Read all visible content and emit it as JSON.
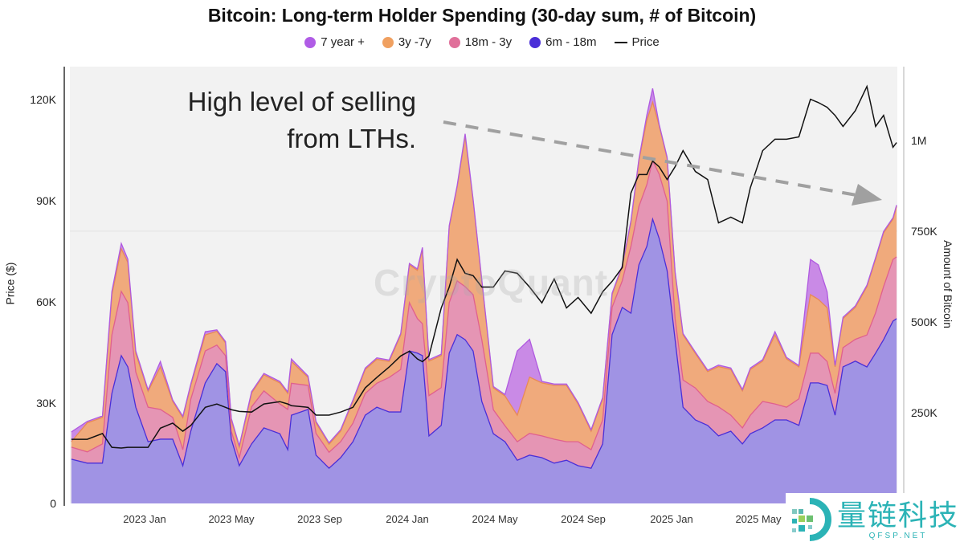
{
  "chart_data": {
    "type": "area",
    "stacked": true,
    "title": "Bitcoin: Long-term Holder Spending (30-day sum, # of Bitcoin)",
    "legend": {
      "placement": "top",
      "items": [
        "7 year +",
        "3y -7y",
        "18m - 3y",
        "6m - 18m",
        "Price"
      ]
    },
    "xlabel": "",
    "ylabel_left": "Price ($)",
    "ylabel_right": "Amount of Bitcoin",
    "x_ticks": [
      "2023 Jan",
      "2023 May",
      "2023 Sep",
      "2024 Jan",
      "2024 May",
      "2024 Sep",
      "2025 Jan",
      "2025 May"
    ],
    "x_tick_dates": [
      "2023-01-01",
      "2023-05-01",
      "2023-09-01",
      "2024-01-01",
      "2024-05-01",
      "2024-09-01",
      "2025-01-01",
      "2025-05-01"
    ],
    "xlim": [
      "2022-09-20",
      "2025-11-06"
    ],
    "left_ticks": [
      "0",
      "30K",
      "60K",
      "90K",
      "120K"
    ],
    "left_tick_values": [
      0,
      30000,
      60000,
      90000,
      120000
    ],
    "ylim_left": [
      0,
      130000
    ],
    "right_ticks": [
      "250K",
      "500K",
      "750K",
      "1M"
    ],
    "right_tick_values": [
      250000,
      500000,
      750000,
      1000000
    ],
    "ylim_right": [
      0,
      1203000
    ],
    "grid": "single horizontal line at 750K",
    "x": [
      "2022-09-22",
      "2022-10-14",
      "2022-11-04",
      "2022-11-17",
      "2022-11-30",
      "2022-12-09",
      "2022-12-20",
      "2023-01-06",
      "2023-01-23",
      "2023-02-09",
      "2023-02-23",
      "2023-03-06",
      "2023-03-26",
      "2023-04-11",
      "2023-04-23",
      "2023-05-01",
      "2023-05-12",
      "2023-05-29",
      "2023-06-15",
      "2023-07-07",
      "2023-07-18",
      "2023-07-23",
      "2023-08-15",
      "2023-08-26",
      "2023-09-13",
      "2023-09-29",
      "2023-10-16",
      "2023-11-02",
      "2023-11-18",
      "2023-12-05",
      "2023-12-21",
      "2024-01-02",
      "2024-01-13",
      "2024-01-20",
      "2024-01-29",
      "2024-02-15",
      "2024-02-26",
      "2024-03-08",
      "2024-03-19",
      "2024-03-30",
      "2024-04-11",
      "2024-04-27",
      "2024-05-13",
      "2024-05-30",
      "2024-06-16",
      "2024-07-03",
      "2024-07-20",
      "2024-08-06",
      "2024-08-22",
      "2024-09-09",
      "2024-09-25",
      "2024-10-08",
      "2024-10-22",
      "2024-11-03",
      "2024-11-14",
      "2024-11-25",
      "2024-12-03",
      "2024-12-12",
      "2024-12-23",
      "2025-01-03",
      "2025-01-14",
      "2025-01-31",
      "2025-02-17",
      "2025-03-04",
      "2025-03-21",
      "2025-04-06",
      "2025-04-17",
      "2025-05-04",
      "2025-05-21",
      "2025-06-06",
      "2025-06-23",
      "2025-07-09",
      "2025-07-20",
      "2025-08-01",
      "2025-08-12",
      "2025-08-23",
      "2025-09-09",
      "2025-09-25",
      "2025-10-07",
      "2025-10-18",
      "2025-10-31",
      "2025-11-05"
    ],
    "series": [
      {
        "name": "6m - 18m",
        "color": "#4a2fd8",
        "fill": "#a093e4",
        "values": [
          122000,
          111000,
          111000,
          303000,
          407000,
          376000,
          265000,
          170000,
          177000,
          177000,
          104000,
          199000,
          332000,
          385000,
          363000,
          177000,
          104000,
          164000,
          208000,
          192000,
          148000,
          243000,
          259000,
          133000,
          97000,
          126000,
          170000,
          243000,
          265000,
          252000,
          252000,
          420000,
          414000,
          407000,
          186000,
          215000,
          414000,
          465000,
          451000,
          420000,
          281000,
          192000,
          170000,
          119000,
          133000,
          126000,
          111000,
          119000,
          104000,
          97000,
          164000,
          465000,
          540000,
          524000,
          657000,
          708000,
          783000,
          730000,
          641000,
          451000,
          265000,
          230000,
          215000,
          186000,
          199000,
          164000,
          192000,
          208000,
          230000,
          230000,
          215000,
          332000,
          332000,
          325000,
          243000,
          376000,
          392000,
          376000,
          414000,
          451000,
          502000,
          509000
        ]
      },
      {
        "name": "18m - 3y",
        "color": "#e0608e",
        "fill": "#e595b4",
        "values": [
          33000,
          31000,
          53000,
          161000,
          177000,
          177000,
          97000,
          95000,
          82000,
          60000,
          44000,
          88000,
          88000,
          51000,
          44000,
          22000,
          22000,
          102000,
          102000,
          82000,
          111000,
          88000,
          66000,
          60000,
          44000,
          44000,
          51000,
          60000,
          66000,
          95000,
          117000,
          133000,
          95000,
          88000,
          111000,
          104000,
          139000,
          148000,
          146000,
          155000,
          170000,
          66000,
          44000,
          51000,
          60000,
          60000,
          66000,
          51000,
          66000,
          51000,
          66000,
          75000,
          73000,
          184000,
          161000,
          170000,
          161000,
          177000,
          192000,
          58000,
          75000,
          88000,
          66000,
          80000,
          44000,
          44000,
          51000,
          73000,
          44000,
          35000,
          73000,
          82000,
          82000,
          66000,
          60000,
          53000,
          60000,
          88000,
          111000,
          146000,
          170000,
          170000
        ]
      },
      {
        "name": "3y -7y",
        "color": "#e88a55",
        "fill": "#f0aa7c",
        "values": [
          15000,
          80000,
          73000,
          111000,
          117000,
          111000,
          51000,
          44000,
          117000,
          44000,
          88000,
          38000,
          44000,
          38000,
          35000,
          31000,
          29000,
          38000,
          44000,
          58000,
          44000,
          60000,
          22000,
          29000,
          22000,
          29000,
          60000,
          66000,
          66000,
          44000,
          95000,
          104000,
          133000,
          206000,
          95000,
          88000,
          208000,
          259000,
          414000,
          259000,
          161000,
          60000,
          82000,
          73000,
          155000,
          146000,
          148000,
          155000,
          104000,
          51000,
          58000,
          35000,
          38000,
          66000,
          126000,
          177000,
          161000,
          133000,
          117000,
          126000,
          124000,
          95000,
          82000,
          111000,
          126000,
          102000,
          126000,
          111000,
          190000,
          133000,
          88000,
          161000,
          148000,
          148000,
          73000,
          80000,
          88000,
          133000,
          148000,
          148000,
          111000,
          139000
        ]
      },
      {
        "name": "7 year +",
        "color": "#b05ae0",
        "fill": "#c98ae6",
        "values": [
          27000,
          4000,
          4000,
          9000,
          15000,
          9000,
          7000,
          4000,
          15000,
          4000,
          4000,
          4000,
          9000,
          4000,
          4000,
          4000,
          4000,
          4000,
          4000,
          4000,
          4000,
          7000,
          4000,
          4000,
          4000,
          4000,
          4000,
          4000,
          4000,
          4000,
          4000,
          4000,
          4000,
          4000,
          4000,
          4000,
          4000,
          4000,
          7000,
          4000,
          4000,
          4000,
          4000,
          177000,
          104000,
          4000,
          4000,
          4000,
          4000,
          4000,
          4000,
          4000,
          4000,
          4000,
          4000,
          15000,
          38000,
          4000,
          4000,
          4000,
          4000,
          4000,
          4000,
          4000,
          4000,
          4000,
          4000,
          4000,
          9000,
          4000,
          4000,
          97000,
          95000,
          44000,
          4000,
          4000,
          4000,
          4000,
          4000,
          4000,
          4000,
          4000
        ]
      }
    ],
    "price": {
      "name": "Price",
      "color": "#111111",
      "values": [
        19100,
        19100,
        20800,
        16700,
        16500,
        16700,
        16700,
        16700,
        22400,
        23900,
        21500,
        23200,
        28600,
        29600,
        28600,
        27900,
        27400,
        27200,
        29600,
        30300,
        29600,
        29100,
        28600,
        26300,
        26300,
        27200,
        28600,
        34400,
        37500,
        40600,
        43900,
        45300,
        43000,
        42200,
        43900,
        58200,
        64400,
        72600,
        68500,
        67800,
        64400,
        64400,
        69200,
        68500,
        64400,
        59700,
        66800,
        58200,
        61300,
        56600,
        63000,
        66100,
        70200,
        92400,
        97900,
        97900,
        101900,
        100200,
        96400,
        100200,
        105000,
        98800,
        96400,
        83500,
        85200,
        83500,
        94000,
        105000,
        108400,
        108400,
        109100,
        120300,
        119300,
        117900,
        115500,
        112200,
        116900,
        124100,
        112200,
        115500,
        106000,
        107400
      ]
    }
  },
  "annotation": {
    "line1": "High level of selling",
    "line2": "from LTHs."
  },
  "watermark": "CryptoQuant",
  "logo": {
    "cn": "量链科技",
    "en": "QFSP.NET"
  },
  "colors": {
    "plot_bg": "#f2f2f2",
    "arrow": "#a0a0a0"
  }
}
